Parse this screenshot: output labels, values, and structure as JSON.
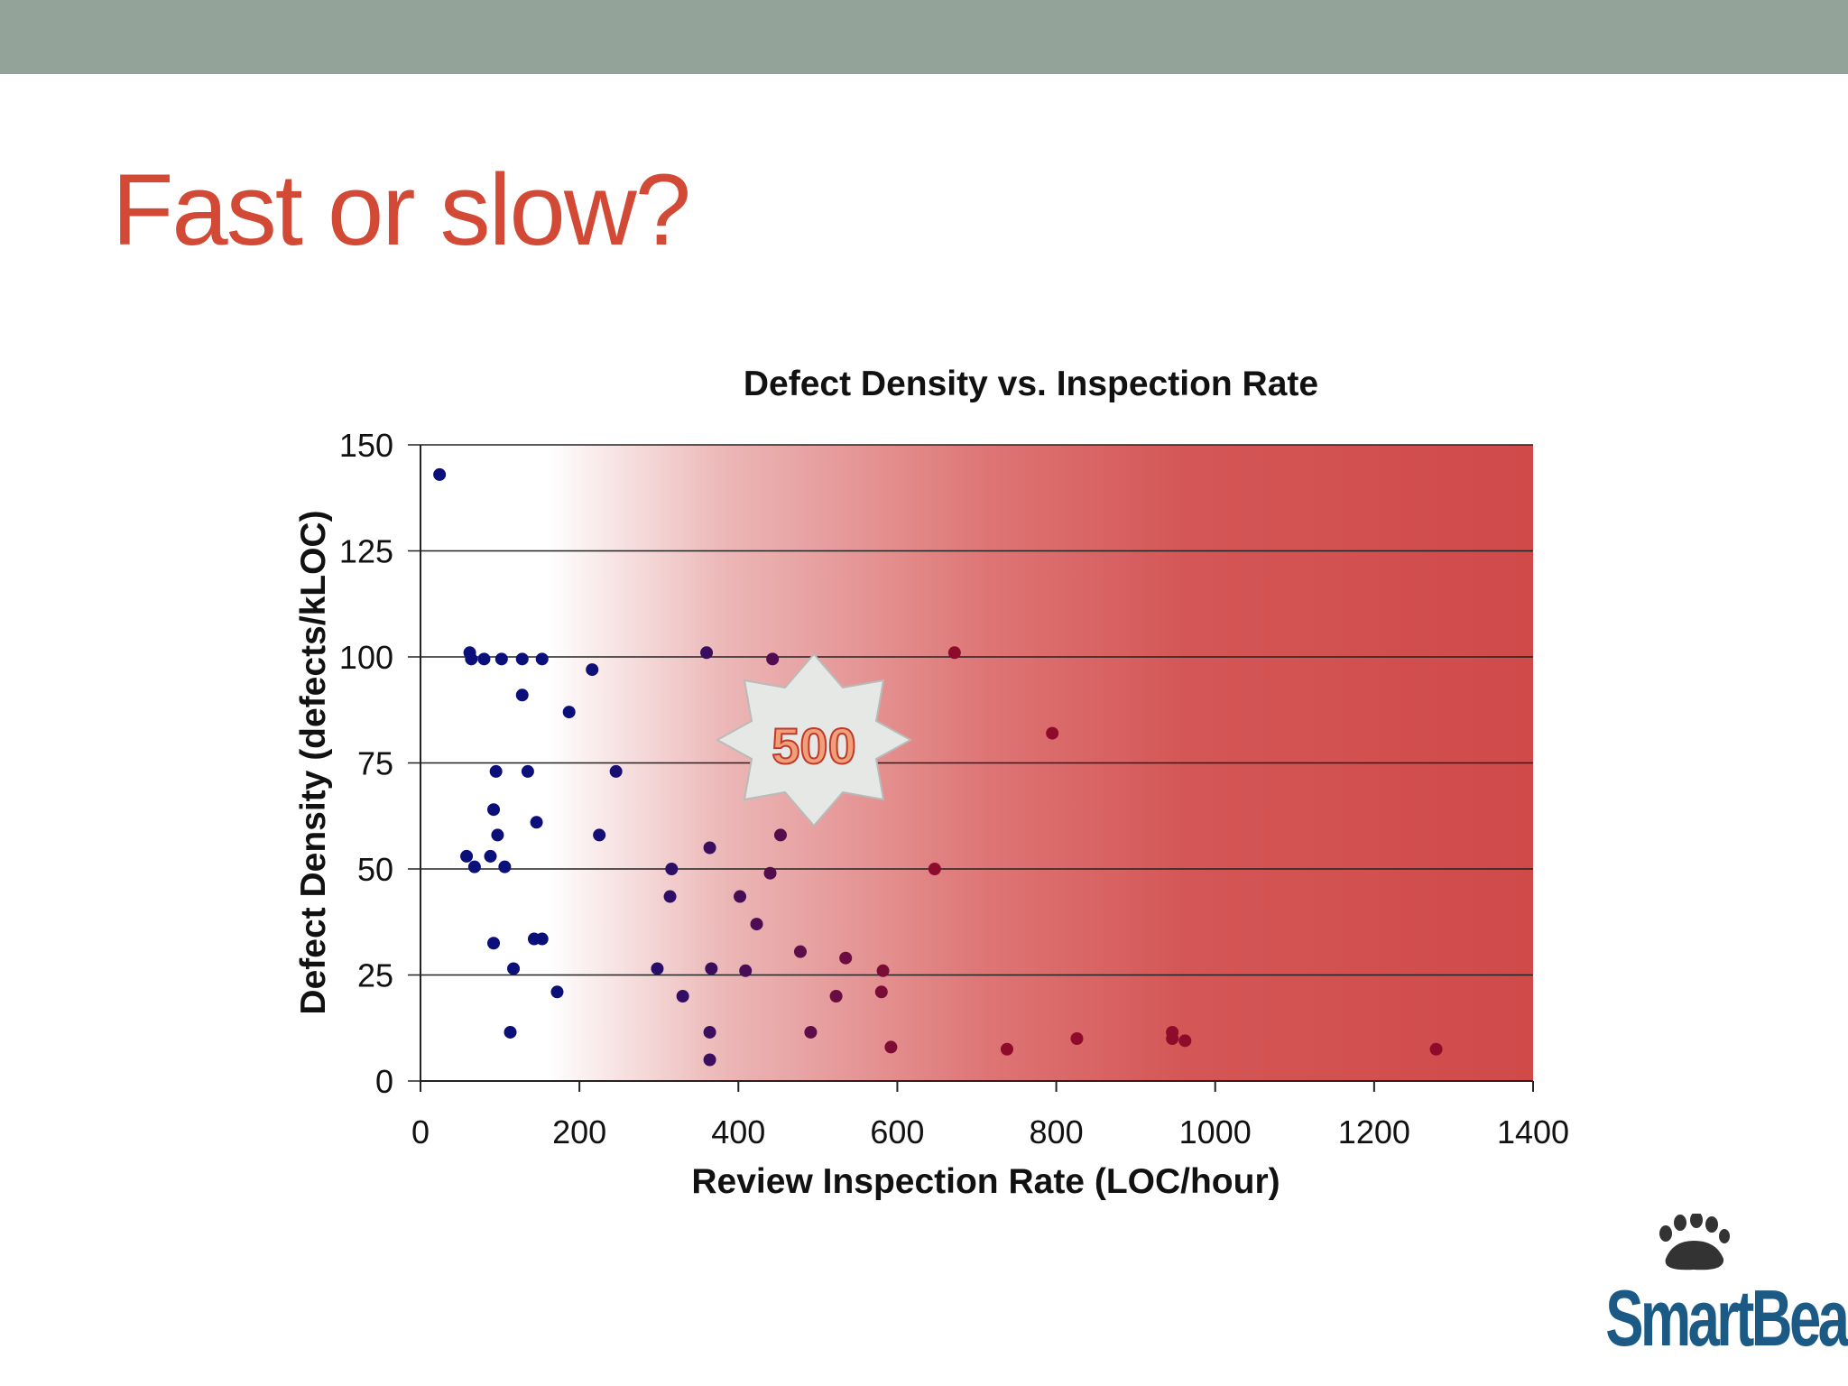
{
  "slide": {
    "title": "Fast or slow?"
  },
  "colors": {
    "top_bar": "#93a39a",
    "title": "#d24a35",
    "zone_red": "#d04a4a",
    "point_blue": "#0b0f7a",
    "point_red": "#8e0b2c",
    "logo": "#1c5a86"
  },
  "callout": {
    "label": "500"
  },
  "logo": {
    "text": "SmartBear",
    "icon": "paw-icon"
  },
  "chart_data": {
    "type": "scatter",
    "title": "Defect Density vs. Inspection Rate",
    "xlabel": "Review Inspection Rate (LOC/hour)",
    "ylabel": "Defect Density (defects/kLOC)",
    "xlim": [
      0,
      1400
    ],
    "ylim": [
      0,
      150
    ],
    "xticks": [
      0,
      200,
      400,
      600,
      800,
      1000,
      1200,
      1400
    ],
    "yticks": [
      0,
      25,
      50,
      75,
      100,
      125,
      150
    ],
    "grid": "horizontal",
    "shaded_region": {
      "from_x": 160,
      "to_x": 1400,
      "description": "red gradient, deeper with higher rate"
    },
    "series": [
      {
        "name": "reviews",
        "points": [
          [
            24,
            143
          ],
          [
            62,
            101
          ],
          [
            64,
            99.5
          ],
          [
            80,
            99.5
          ],
          [
            102,
            99.5
          ],
          [
            128,
            99.5
          ],
          [
            153,
            99.5
          ],
          [
            216,
            97
          ],
          [
            128,
            91
          ],
          [
            187,
            87
          ],
          [
            95,
            73
          ],
          [
            135,
            73
          ],
          [
            246,
            73
          ],
          [
            92,
            64
          ],
          [
            146,
            61
          ],
          [
            97,
            58
          ],
          [
            225,
            58
          ],
          [
            58,
            53
          ],
          [
            88,
            53
          ],
          [
            68,
            50.5
          ],
          [
            106,
            50.5
          ],
          [
            92,
            32.5
          ],
          [
            143,
            33.5
          ],
          [
            153,
            33.5
          ],
          [
            117,
            26.5
          ],
          [
            172,
            21
          ],
          [
            113,
            11.5
          ],
          [
            360,
            101
          ],
          [
            443,
            99.5
          ],
          [
            672,
            101
          ],
          [
            795,
            82
          ],
          [
            364,
            55
          ],
          [
            453,
            58
          ],
          [
            316,
            50
          ],
          [
            440,
            49
          ],
          [
            647,
            50
          ],
          [
            314,
            43.5
          ],
          [
            402,
            43.5
          ],
          [
            423,
            37
          ],
          [
            478,
            30.5
          ],
          [
            535,
            29
          ],
          [
            298,
            26.5
          ],
          [
            366,
            26.5
          ],
          [
            409,
            26
          ],
          [
            582,
            26
          ],
          [
            330,
            20
          ],
          [
            523,
            20
          ],
          [
            580,
            21
          ],
          [
            364,
            11.5
          ],
          [
            491,
            11.5
          ],
          [
            592,
            8
          ],
          [
            364,
            5
          ],
          [
            738,
            7.5
          ],
          [
            826,
            10
          ],
          [
            946,
            11.5
          ],
          [
            946,
            10
          ],
          [
            962,
            9.5
          ],
          [
            1278,
            7.5
          ]
        ]
      }
    ]
  }
}
